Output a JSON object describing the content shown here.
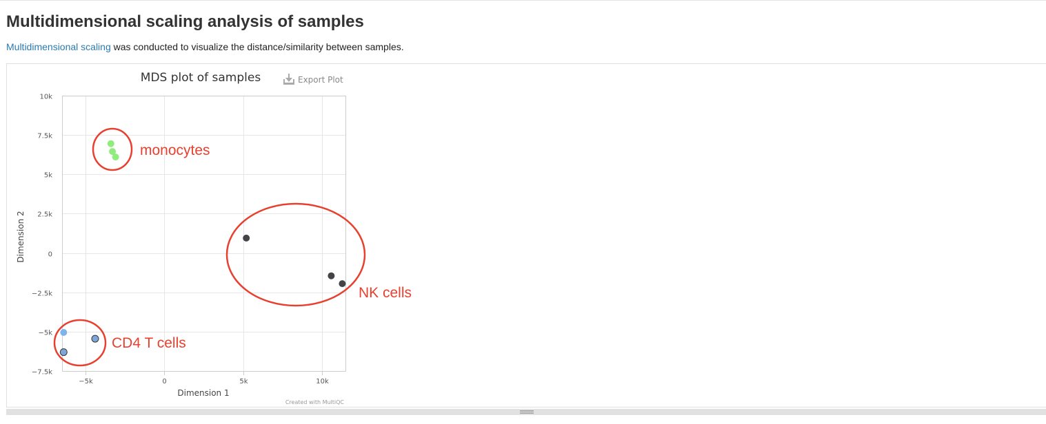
{
  "section": {
    "title": "Multidimensional scaling analysis of samples",
    "desc_link": "Multidimensional scaling",
    "desc_rest": " was conducted to visualize the distance/similarity between samples."
  },
  "toolbar": {
    "export_label": "Export Plot"
  },
  "credits": "Created with MultiQC",
  "chart_data": {
    "type": "scatter",
    "title": "MDS plot of samples",
    "xlabel": "Dimension 1",
    "ylabel": "Dimension 2",
    "xlim": [
      -6500,
      11500
    ],
    "ylim": [
      -7500,
      10000
    ],
    "xticks": [
      -5000,
      0,
      5000,
      10000
    ],
    "xtick_labels": [
      "−5k",
      "0",
      "5k",
      "10k"
    ],
    "yticks": [
      10000,
      7500,
      5000,
      2500,
      0,
      -2500,
      -5000,
      -7500
    ],
    "ytick_labels": [
      "10k",
      "7.5k",
      "5k",
      "2.5k",
      "0",
      "−2.5k",
      "−5k",
      "−7.5k"
    ],
    "grid": true,
    "legend": "none",
    "series": [
      {
        "color": "#90ed7d",
        "outline": false,
        "points": [
          [
            -3400,
            6950
          ],
          [
            -3300,
            6450
          ],
          [
            -3100,
            6100
          ]
        ]
      },
      {
        "color": "#434348",
        "outline": false,
        "points": [
          [
            5200,
            950
          ],
          [
            10600,
            -1450
          ],
          [
            11300,
            -1950
          ]
        ]
      },
      {
        "color": "#7cb5ec",
        "outline": false,
        "points": [
          [
            -6400,
            -5050
          ]
        ]
      },
      {
        "color": "#7ea6d9",
        "outline": true,
        "points": [
          [
            -4400,
            -5450
          ],
          [
            -6400,
            -6300
          ]
        ]
      }
    ],
    "annotations": [
      {
        "text": "monocytes",
        "color": "#e8402f"
      },
      {
        "text": "NK cells",
        "color": "#e8402f"
      },
      {
        "text": "CD4 T cells",
        "color": "#e8402f"
      }
    ]
  }
}
